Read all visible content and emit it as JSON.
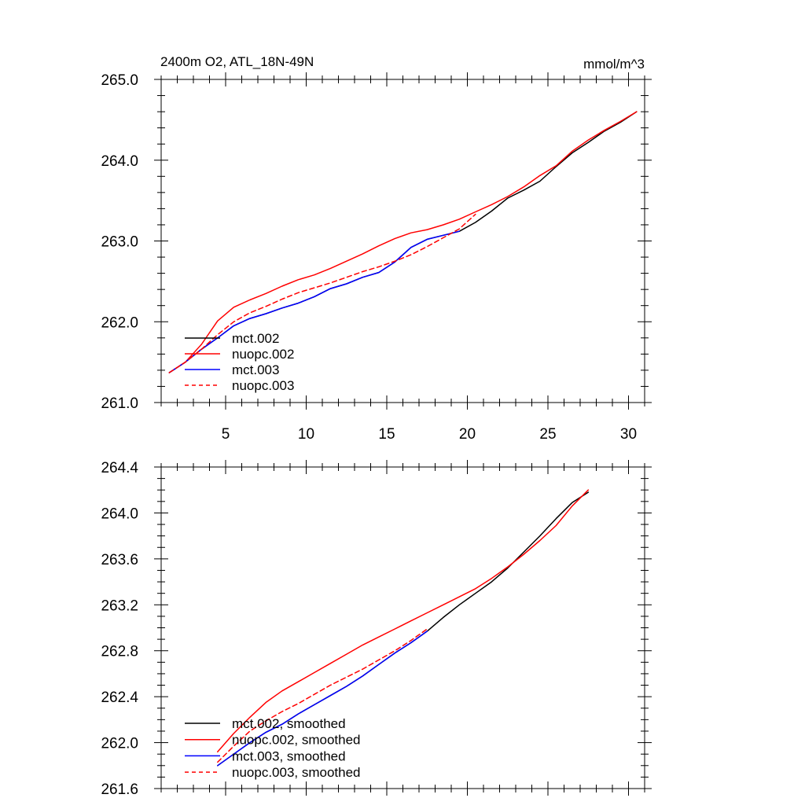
{
  "chart_data": [
    {
      "type": "line",
      "title": "2400m O2, ATL_18N-49N",
      "units_label": "mmol/m^3",
      "xlabel": "",
      "ylabel": "",
      "xlim": [
        1,
        31
      ],
      "ylim": [
        261.0,
        265.0
      ],
      "x_ticks": [
        5,
        10,
        15,
        20,
        25,
        30
      ],
      "x_tick_labels": [
        "5",
        "10",
        "15",
        "20",
        "25",
        "30"
      ],
      "y_ticks": [
        261.0,
        262.0,
        263.0,
        264.0,
        265.0
      ],
      "y_tick_labels": [
        "261.0",
        "262.0",
        "263.0",
        "264.0",
        "265.0"
      ],
      "legend_position": "bottom-left",
      "series": [
        {
          "name": "mct.002",
          "color": "#000000",
          "dash": "solid",
          "x": [
            1.5,
            2.5,
            3.5,
            4.5,
            5.5,
            6.5,
            7.5,
            8.5,
            9.5,
            10.5,
            11.5,
            12.5,
            13.5,
            14.5,
            15.5,
            16.5,
            17.5,
            18.5,
            19.5,
            20.5,
            21.5,
            22.5,
            23.5,
            24.5,
            25.5,
            26.5,
            27.5,
            28.5,
            29.5,
            30.5
          ],
          "values": [
            261.37,
            261.5,
            261.66,
            261.8,
            261.95,
            262.04,
            262.1,
            262.17,
            262.23,
            262.31,
            262.41,
            262.47,
            262.55,
            262.61,
            262.74,
            262.92,
            263.02,
            263.07,
            263.12,
            263.23,
            263.37,
            263.53,
            263.63,
            263.74,
            263.92,
            264.09,
            264.22,
            264.36,
            264.47,
            264.6
          ]
        },
        {
          "name": "nuopc.002",
          "color": "#ff0000",
          "dash": "solid",
          "x": [
            1.5,
            2.5,
            3.5,
            4.5,
            5.5,
            6.5,
            7.5,
            8.5,
            9.5,
            10.5,
            11.5,
            12.5,
            13.5,
            14.5,
            15.5,
            16.5,
            17.5,
            18.5,
            19.5,
            20.5,
            21.5,
            22.5,
            23.5,
            24.5,
            25.5,
            26.5,
            27.5,
            28.5,
            29.5,
            30.5
          ],
          "values": [
            261.37,
            261.5,
            261.72,
            262.01,
            262.18,
            262.27,
            262.35,
            262.44,
            262.52,
            262.58,
            262.66,
            262.75,
            262.84,
            262.94,
            263.03,
            263.1,
            263.14,
            263.2,
            263.27,
            263.36,
            263.45,
            263.55,
            263.67,
            263.81,
            263.93,
            264.11,
            264.25,
            264.37,
            264.48,
            264.6
          ]
        },
        {
          "name": "mct.003",
          "color": "#0000ff",
          "dash": "solid",
          "x": [
            1.5,
            2.5,
            3.5,
            4.5,
            5.5,
            6.5,
            7.5,
            8.5,
            9.5,
            10.5,
            11.5,
            12.5,
            13.5,
            14.5,
            15.5,
            16.5,
            17.5,
            18.5,
            19.5
          ],
          "values": [
            261.37,
            261.5,
            261.66,
            261.8,
            261.95,
            262.04,
            262.1,
            262.17,
            262.23,
            262.31,
            262.41,
            262.47,
            262.55,
            262.61,
            262.74,
            262.92,
            263.02,
            263.07,
            263.12
          ]
        },
        {
          "name": "nuopc.003",
          "color": "#ff0000",
          "dash": "dashed",
          "x": [
            1.5,
            2.5,
            3.5,
            4.5,
            5.5,
            6.5,
            7.5,
            8.5,
            9.5,
            10.5,
            11.5,
            12.5,
            13.5,
            14.5,
            15.5,
            16.5,
            17.5,
            18.5,
            19.5,
            20.5
          ],
          "values": [
            261.37,
            261.5,
            261.66,
            261.84,
            262.0,
            262.11,
            262.19,
            262.28,
            262.36,
            262.42,
            262.48,
            262.55,
            262.62,
            262.68,
            262.75,
            262.83,
            262.93,
            263.04,
            263.15,
            263.33
          ]
        }
      ]
    },
    {
      "type": "line",
      "title": "",
      "xlabel": "",
      "ylabel": "",
      "xlim": [
        1,
        31
      ],
      "ylim": [
        261.6,
        264.4
      ],
      "x_ticks": [
        5,
        10,
        15,
        20,
        25,
        30
      ],
      "x_tick_labels": [],
      "y_ticks": [
        261.6,
        262.0,
        262.4,
        262.8,
        263.2,
        263.6,
        264.0,
        264.4
      ],
      "y_tick_labels": [
        "261.6",
        "262.0",
        "262.4",
        "262.8",
        "263.2",
        "263.6",
        "264.0",
        "264.4"
      ],
      "legend_position": "bottom-left",
      "series": [
        {
          "name": "mct.002, smoothed",
          "color": "#000000",
          "dash": "solid",
          "x": [
            4.5,
            5.5,
            6.5,
            7.5,
            8.5,
            9.5,
            10.5,
            11.5,
            12.5,
            13.5,
            14.5,
            15.5,
            16.5,
            17.5,
            18.5,
            19.5,
            20.5,
            21.5,
            22.5,
            23.5,
            24.5,
            25.5,
            26.5,
            27.5
          ],
          "values": [
            261.8,
            261.9,
            262.0,
            262.09,
            262.16,
            262.25,
            262.33,
            262.41,
            262.49,
            262.58,
            262.68,
            262.78,
            262.87,
            262.97,
            263.09,
            263.2,
            263.3,
            263.4,
            263.52,
            263.66,
            263.8,
            263.95,
            264.09,
            264.18
          ]
        },
        {
          "name": "nuopc.002, smoothed",
          "color": "#ff0000",
          "dash": "solid",
          "x": [
            4.5,
            5.5,
            6.5,
            7.5,
            8.5,
            9.5,
            10.5,
            11.5,
            12.5,
            13.5,
            14.5,
            15.5,
            16.5,
            17.5,
            18.5,
            19.5,
            20.5,
            21.5,
            22.5,
            23.5,
            24.5,
            25.5,
            26.5,
            27.5
          ],
          "values": [
            261.92,
            262.08,
            262.22,
            262.35,
            262.45,
            262.53,
            262.61,
            262.69,
            262.77,
            262.85,
            262.92,
            262.99,
            263.06,
            263.13,
            263.2,
            263.27,
            263.34,
            263.43,
            263.53,
            263.64,
            263.76,
            263.89,
            264.06,
            264.2
          ]
        },
        {
          "name": "mct.003, smoothed",
          "color": "#0000ff",
          "dash": "solid",
          "x": [
            4.5,
            5.5,
            6.5,
            7.5,
            8.5,
            9.5,
            10.5,
            11.5,
            12.5,
            13.5,
            14.5,
            15.5,
            16.5,
            17.5
          ],
          "values": [
            261.8,
            261.9,
            262.0,
            262.09,
            262.16,
            262.25,
            262.33,
            262.41,
            262.49,
            262.58,
            262.68,
            262.78,
            262.87,
            262.97
          ]
        },
        {
          "name": "nuopc.003, smoothed",
          "color": "#ff0000",
          "dash": "dashed",
          "x": [
            4.5,
            5.5,
            6.5,
            7.5,
            8.5,
            9.5,
            10.5,
            11.5,
            12.5,
            13.5,
            14.5,
            15.5,
            16.5,
            17.5
          ],
          "values": [
            261.83,
            261.97,
            262.1,
            262.19,
            262.27,
            262.34,
            262.42,
            262.5,
            262.57,
            262.64,
            262.72,
            262.8,
            262.89,
            262.99
          ]
        }
      ]
    }
  ]
}
